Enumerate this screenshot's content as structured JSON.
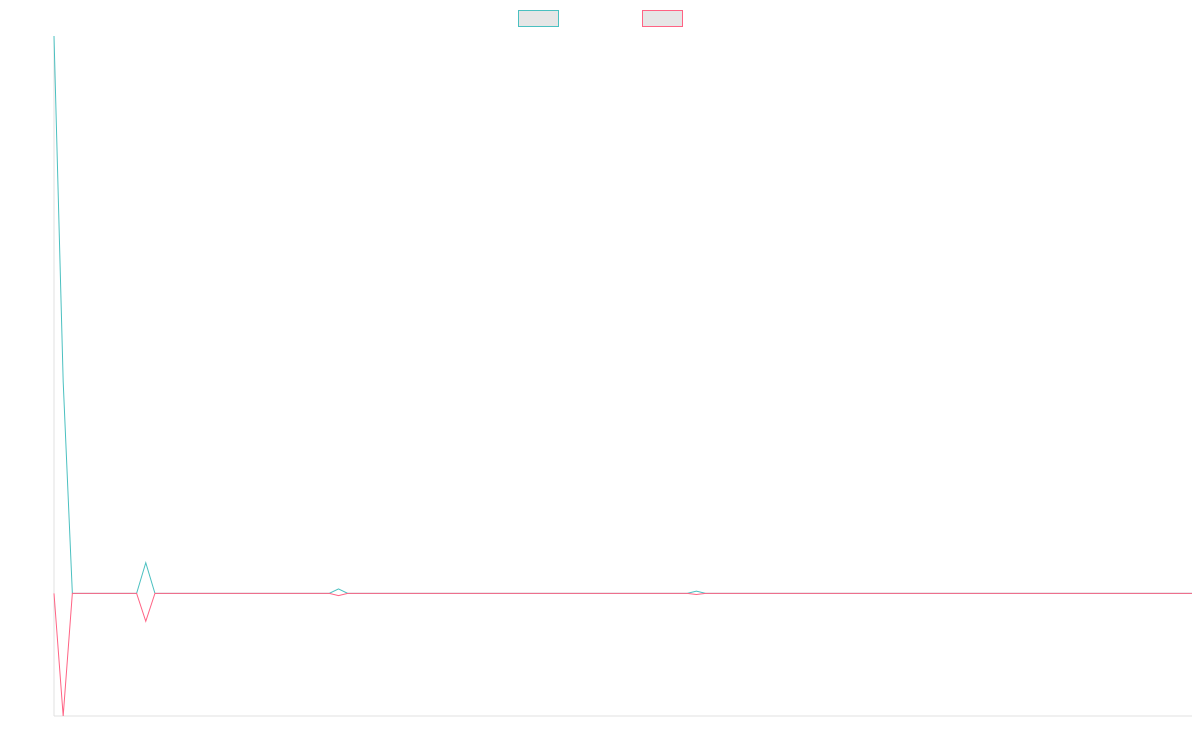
{
  "chart_data": {
    "type": "line",
    "title": "",
    "xlabel": "",
    "ylabel": "",
    "x": [
      0,
      1,
      2,
      3,
      4,
      5,
      6,
      7,
      8,
      9,
      10,
      11,
      12,
      13,
      14,
      15,
      16,
      17,
      18,
      19,
      20,
      21,
      22,
      23,
      24,
      25,
      26,
      27,
      28,
      29,
      30,
      31,
      32,
      33,
      34,
      35,
      36,
      37,
      38,
      39,
      40,
      41,
      42,
      43,
      44,
      45,
      46,
      47,
      48,
      49,
      50,
      51,
      52,
      53,
      54,
      55,
      56,
      57,
      58,
      59,
      60,
      61,
      62,
      63,
      64,
      65,
      66,
      67,
      68,
      69,
      70,
      71,
      72,
      73,
      74,
      75,
      76,
      77,
      78,
      79,
      80,
      81,
      82,
      83,
      84,
      85,
      86,
      87,
      88,
      89,
      90,
      91,
      92,
      93,
      94,
      95,
      96,
      97,
      98,
      99,
      100,
      101,
      102,
      103,
      104,
      105,
      106,
      107,
      108,
      109,
      110,
      111,
      112,
      113,
      114,
      115,
      116,
      117,
      118,
      119,
      120,
      121,
      122,
      123,
      124
    ],
    "xlim": [
      0,
      124
    ],
    "ylim": [
      -22,
      100
    ],
    "grid": false,
    "legend": "top-center",
    "series": [
      {
        "color": "#4bc0c0",
        "values": [
          100,
          38,
          0,
          0,
          0,
          0,
          0,
          0,
          0,
          0,
          5.5,
          0,
          0,
          0,
          0,
          0,
          0,
          0,
          0,
          0,
          0,
          0,
          0,
          0,
          0,
          0,
          0,
          0,
          0,
          0,
          0,
          0.8,
          0,
          0,
          0,
          0,
          0,
          0,
          0,
          0,
          0,
          0,
          0,
          0,
          0,
          0,
          0,
          0,
          0,
          0,
          0,
          0,
          0,
          0,
          0,
          0,
          0,
          0,
          0,
          0,
          0,
          0,
          0,
          0,
          0,
          0,
          0,
          0,
          0,
          0,
          0.4,
          0,
          0,
          0,
          0,
          0,
          0,
          0,
          0,
          0,
          0,
          0,
          0,
          0,
          0,
          0,
          0,
          0,
          0,
          0,
          0,
          0,
          0,
          0,
          0,
          0,
          0,
          0,
          0,
          0,
          0,
          0,
          0,
          0,
          0,
          0,
          0,
          0,
          0,
          0,
          0,
          0,
          0,
          0,
          0,
          0,
          0,
          0,
          0,
          0,
          0,
          0,
          0,
          0,
          0
        ]
      },
      {
        "color": "#ff6384",
        "values": [
          0,
          -22,
          0,
          0,
          0,
          0,
          0,
          0,
          0,
          0,
          -5,
          0,
          0,
          0,
          0,
          0,
          0,
          0,
          0,
          0,
          0,
          0,
          0,
          0,
          0,
          0,
          0,
          0,
          0,
          0,
          0,
          -0.4,
          0,
          0,
          0,
          0,
          0,
          0,
          0,
          0,
          0,
          0,
          0,
          0,
          0,
          0,
          0,
          0,
          0,
          0,
          0,
          0,
          0,
          0,
          0,
          0,
          0,
          0,
          0,
          0,
          0,
          0,
          0,
          0,
          0,
          0,
          0,
          0,
          0,
          0,
          -0.2,
          0,
          0,
          0,
          0,
          0,
          0,
          0,
          0,
          0,
          0,
          0,
          0,
          0,
          0,
          0,
          0,
          0,
          0,
          0,
          0,
          0,
          0,
          0,
          0,
          0,
          0,
          0,
          0,
          0,
          0,
          0,
          0,
          0,
          0,
          0,
          0,
          0,
          0,
          0,
          0,
          0,
          0,
          0,
          0,
          0,
          0,
          0,
          0,
          0,
          0,
          0,
          0,
          0,
          0
        ]
      }
    ]
  },
  "legend_fill": "#e6e6e6",
  "axis_color": "#e0e0e0"
}
